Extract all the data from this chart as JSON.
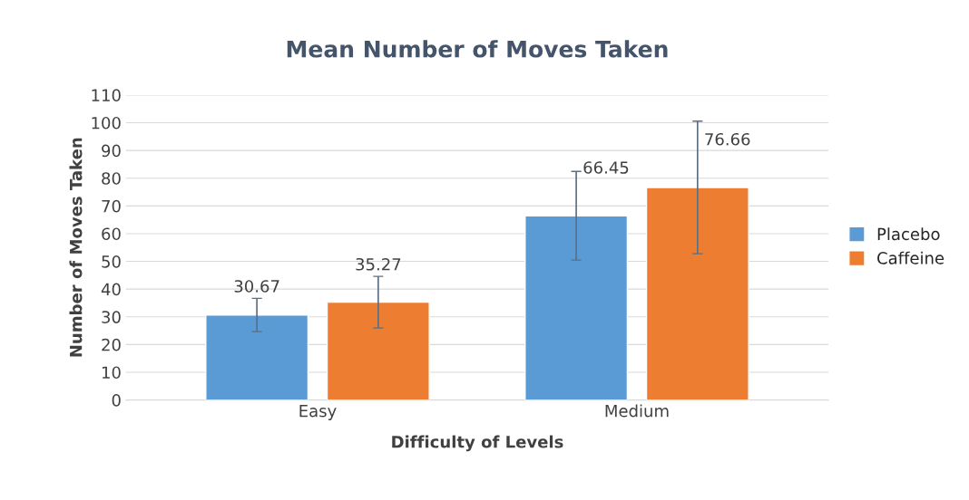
{
  "chart_data": {
    "type": "bar",
    "title": "Mean Number of Moves Taken",
    "xlabel": "Difficulty of Levels",
    "ylabel": "Number of Moves Taken",
    "categories": [
      "Easy",
      "Medium"
    ],
    "series": [
      {
        "name": "Placebo",
        "color": "#5b9bd5",
        "values": [
          30.67,
          66.45
        ],
        "errors": [
          6,
          16
        ]
      },
      {
        "name": "Caffeine",
        "color": "#ed7d31",
        "values": [
          35.27,
          76.66
        ],
        "errors": [
          9.3,
          23.9
        ]
      }
    ],
    "ylim": [
      0,
      110
    ],
    "yticks": [
      0,
      10,
      20,
      30,
      40,
      50,
      60,
      70,
      80,
      90,
      100,
      110
    ],
    "grid": "y",
    "legend": "right",
    "data_labels": true
  }
}
